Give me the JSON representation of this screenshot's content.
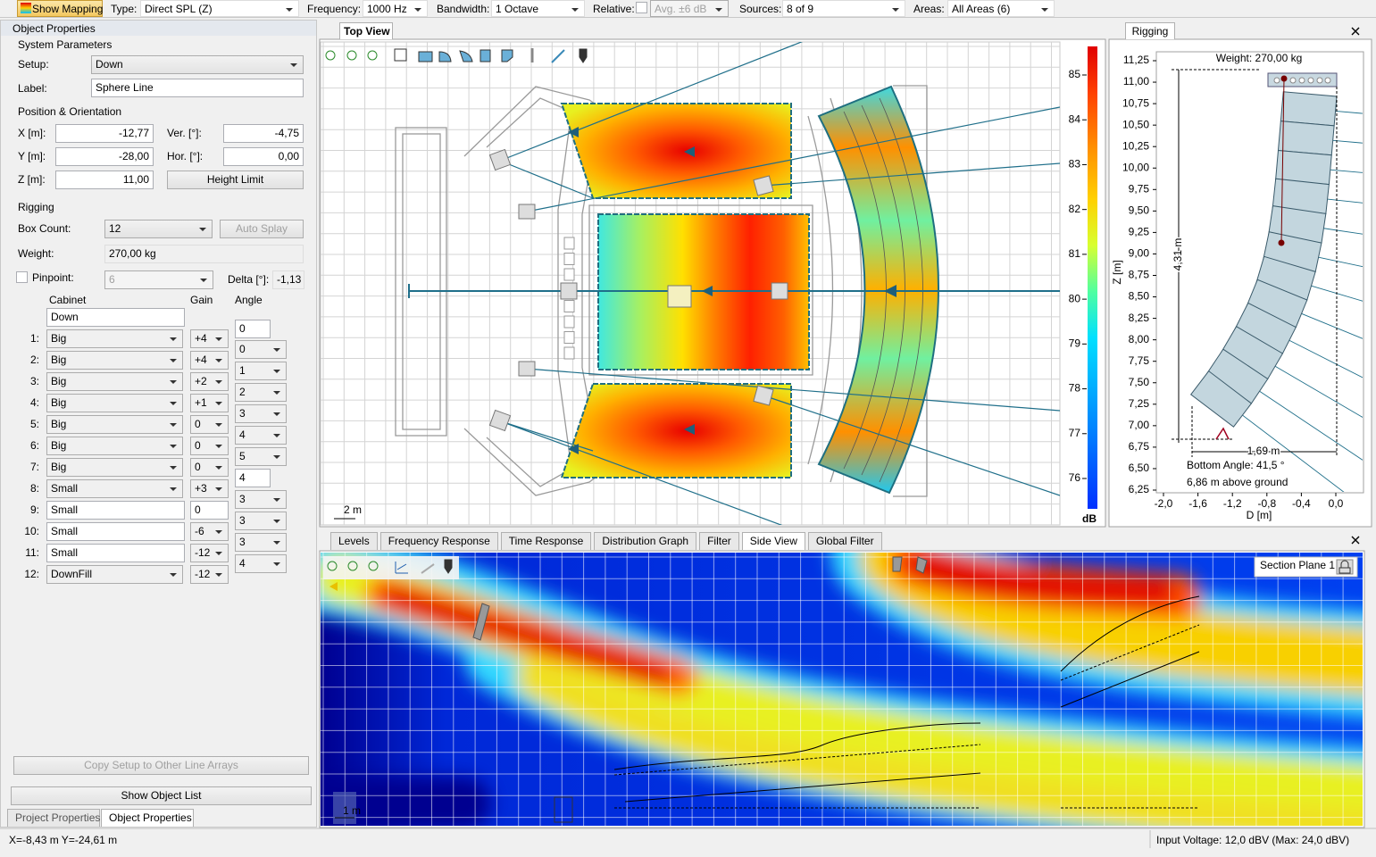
{
  "toolbar": {
    "show_mapping": "Show Mapping",
    "type_label": "Type:",
    "type_value": "Direct SPL (Z)",
    "frequency_label": "Frequency:",
    "frequency_value": "1000 Hz",
    "bandwidth_label": "Bandwidth:",
    "bandwidth_value": "1 Octave",
    "relative_label": "Relative:",
    "avg_value": "Avg. ±6 dB",
    "sources_label": "Sources:",
    "sources_value": "8 of 9",
    "areas_label": "Areas:",
    "areas_value": "All Areas (6)"
  },
  "object_properties": {
    "title": "Object Properties",
    "system_parameters": {
      "heading": "System Parameters",
      "setup_label": "Setup:",
      "setup_value": "Down",
      "label_label": "Label:",
      "label_value": "Sphere Line"
    },
    "position": {
      "heading": "Position & Orientation",
      "x_label": "X [m]:",
      "x_value": "-12,77",
      "ver_label": "Ver. [°]:",
      "ver_value": "-4,75",
      "y_label": "Y [m]:",
      "y_value": "-28,00",
      "hor_label": "Hor. [°]:",
      "hor_value": "0,00",
      "z_label": "Z [m]:",
      "z_value": "11,00",
      "height_limit": "Height Limit"
    },
    "rigging": {
      "heading": "Rigging",
      "box_count_label": "Box Count:",
      "box_count_value": "12",
      "auto_splay": "Auto Splay",
      "weight_label": "Weight:",
      "weight_value": "270,00 kg",
      "pinpoint_label": "Pinpoint:",
      "pinpoint_value": "6",
      "delta_label": "Delta [°]:",
      "delta_value": "-1,13"
    },
    "table": {
      "headers": [
        "Cabinet",
        "Gain",
        "Angle"
      ],
      "top_cabinet": "Down",
      "rows": [
        {
          "index": "1:",
          "cabinet": "Big",
          "gain": "+4"
        },
        {
          "index": "2:",
          "cabinet": "Big",
          "gain": "+4"
        },
        {
          "index": "3:",
          "cabinet": "Big",
          "gain": "+2"
        },
        {
          "index": "4:",
          "cabinet": "Big",
          "gain": "+1"
        },
        {
          "index": "5:",
          "cabinet": "Big",
          "gain": "0"
        },
        {
          "index": "6:",
          "cabinet": "Big",
          "gain": "0"
        },
        {
          "index": "7:",
          "cabinet": "Big",
          "gain": "0"
        },
        {
          "index": "8:",
          "cabinet": "Small",
          "gain": "+3"
        },
        {
          "index": "9:",
          "cabinet": "Small",
          "gain": "0"
        },
        {
          "index": "10:",
          "cabinet": "Small",
          "gain": "-6"
        },
        {
          "index": "11:",
          "cabinet": "Small",
          "gain": "-12"
        },
        {
          "index": "12:",
          "cabinet": "DownFill",
          "gain": "-12"
        }
      ],
      "angles": [
        "0",
        "0",
        "1",
        "2",
        "3",
        "4",
        "5",
        "4",
        "3",
        "3",
        "3",
        "4"
      ]
    },
    "copy_setup": "Copy Setup to Other Line Arrays",
    "show_object_list": "Show Object List",
    "bottom_tabs": [
      "Project Properties",
      "Object Properties"
    ]
  },
  "top_view": {
    "tab": "Top View",
    "scale": "2 m",
    "colorbar": {
      "ticks": [
        85,
        84,
        83,
        82,
        81,
        80,
        79,
        78,
        77,
        76
      ],
      "unit": "dB"
    }
  },
  "rigging_view": {
    "tab": "Rigging",
    "y_axis_label": "Z [m]",
    "x_axis_label": "D [m]",
    "yticks": [
      "11,25",
      "11,00",
      "10,75",
      "10,50",
      "10,25",
      "10,00",
      "9,75",
      "9,50",
      "9,25",
      "9,00",
      "8,75",
      "8,50",
      "8,25",
      "8,00",
      "7,75",
      "7,50",
      "7,25",
      "7,00",
      "6,75",
      "6,50",
      "6,25"
    ],
    "xticks": [
      "-2,0",
      "-1,6",
      "-1,2",
      "-0,8",
      "-0,4",
      "0,0"
    ],
    "weight": "Weight: 270,00 kg",
    "height_dim": "4,31 m",
    "depth_dim": "1,69 m",
    "bottom_angle": "Bottom Angle: 41,5 °",
    "above_ground": "6,86 m above ground"
  },
  "analysis_tabs": [
    "Levels",
    "Frequency Response",
    "Time Response",
    "Distribution Graph",
    "Filter",
    "Side View",
    "Global Filter"
  ],
  "side_view": {
    "section_plane": "Section Plane 1",
    "scale": "1 m"
  },
  "status": {
    "coordinates": "X=-8,43 m Y=-24,61 m",
    "input_voltage": "Input Voltage: 12,0 dBV (Max: 24,0 dBV)"
  }
}
